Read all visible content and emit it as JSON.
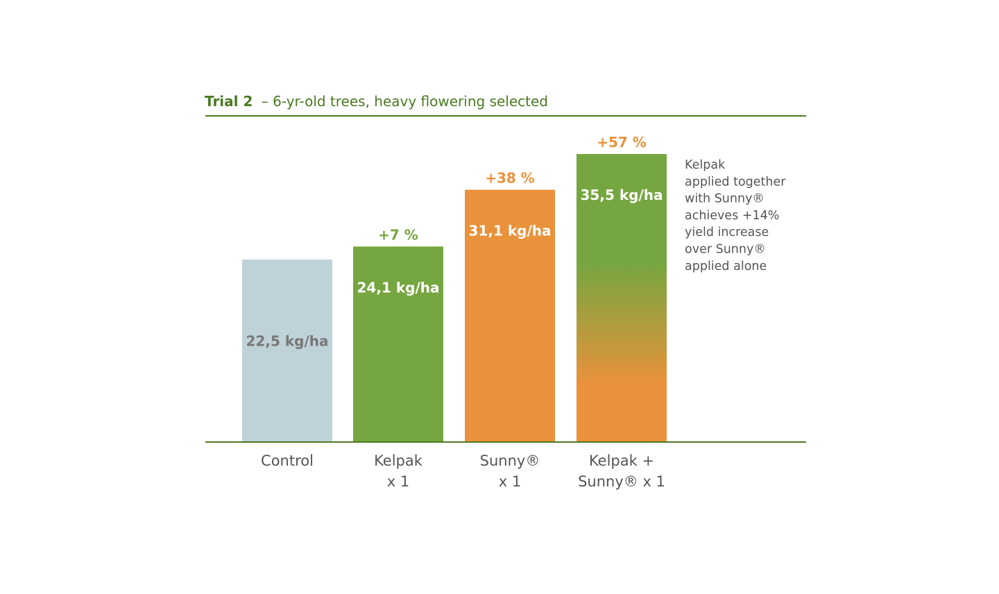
{
  "colors": {
    "brand_green": "#4a7a22",
    "bar_green": "#76a640",
    "bar_orange": "#e9923b",
    "control_blue": "#bfd2d7",
    "control_text": "#777777",
    "label_gray": "#555555"
  },
  "chart_data": {
    "type": "bar",
    "title": "Trial 2",
    "subtitle": "– 6-yr-old trees, heavy flowering selected",
    "ylabel": "",
    "xlabel": "",
    "unit": "kg/ha",
    "ylim": [
      0,
      36
    ],
    "categories": [
      [
        "Control"
      ],
      [
        "Kelpak",
        "x 1"
      ],
      [
        "Sunny® ",
        "x 1"
      ],
      [
        "Kelpak +",
        "Sunny® x 1"
      ]
    ],
    "values": [
      22.5,
      24.1,
      31.1,
      35.5
    ],
    "value_labels": [
      "22,5 kg/ha",
      "24,1 kg/ha",
      "31,1 kg/ha",
      "35,5 kg/ha"
    ],
    "increase_labels": [
      "",
      "+7 %",
      "+38 %",
      "+57 %"
    ],
    "bar_fills": [
      "control",
      "green",
      "orange",
      "gradient"
    ],
    "note_lines": [
      "Kelpak",
      "applied together",
      "with Sunny®",
      "achieves +14%",
      "yield increase",
      "over Sunny®",
      "applied alone"
    ]
  }
}
